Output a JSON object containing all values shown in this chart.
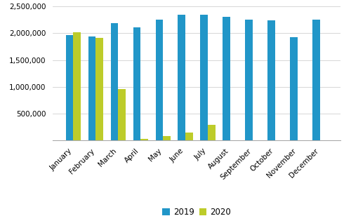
{
  "months": [
    "January",
    "February",
    "March",
    "April",
    "May",
    "June",
    "July",
    "August",
    "September",
    "October",
    "November",
    "December"
  ],
  "values_2019": [
    1960000,
    1945000,
    2185000,
    2115000,
    2255000,
    2350000,
    2345000,
    2305000,
    2255000,
    2245000,
    1930000,
    2255000
  ],
  "values_2020": [
    2020000,
    1920000,
    955000,
    35000,
    75000,
    150000,
    285000,
    0,
    0,
    0,
    0,
    0
  ],
  "color_2019": "#2196C8",
  "color_2020": "#BDCC2A",
  "ylim": [
    0,
    2500000
  ],
  "yticks": [
    500000,
    1000000,
    1500000,
    2000000,
    2500000
  ],
  "legend_labels": [
    "2019",
    "2020"
  ],
  "background_color": "#ffffff",
  "grid_color": "#d0d0d0"
}
